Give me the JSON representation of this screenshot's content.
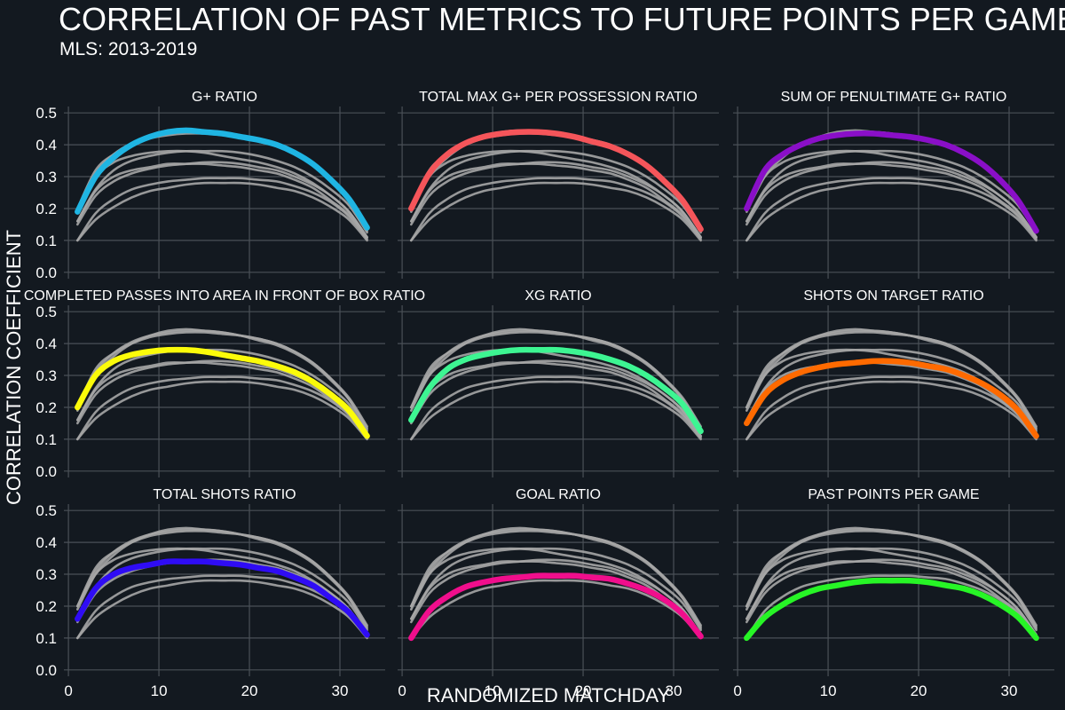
{
  "title": "CORRELATION OF PAST METRICS TO FUTURE POINTS PER GAME",
  "subtitle": "MLS: 2013-2019",
  "chart_data": {
    "type": "line",
    "layout": "facet-grid-3x3",
    "xlabel": "RANDOMIZED MATCHDAY",
    "ylabel": "CORRELATION COEFFICIENT",
    "xlim": [
      -0.5,
      35
    ],
    "ylim": [
      -0.02,
      0.52
    ],
    "xticks": [
      0,
      10,
      20,
      30
    ],
    "xtick_labels": [
      "0",
      "10",
      "20",
      "30"
    ],
    "yticks": [
      0,
      0.1,
      0.2,
      0.3,
      0.4,
      0.5
    ],
    "ytick_labels": [
      "0.0",
      "0.1",
      "0.2",
      "0.3",
      "0.4",
      "0.5"
    ],
    "grid": true,
    "legend": "none",
    "x": [
      1,
      3,
      5,
      7,
      9,
      11,
      13,
      15,
      17,
      19,
      21,
      23,
      25,
      27,
      29,
      31,
      33
    ],
    "background_series_color": "#a6a6a6",
    "series": [
      {
        "name": "G+ RATIO",
        "color": "#1fb5e3",
        "values": [
          0.19,
          0.3,
          0.36,
          0.4,
          0.425,
          0.44,
          0.445,
          0.44,
          0.435,
          0.425,
          0.415,
          0.4,
          0.375,
          0.34,
          0.29,
          0.23,
          0.14
        ]
      },
      {
        "name": "TOTAL MAX G+ PER POSSESSION RATIO",
        "color": "#f5555a",
        "values": [
          0.2,
          0.31,
          0.37,
          0.405,
          0.425,
          0.435,
          0.44,
          0.44,
          0.435,
          0.425,
          0.41,
          0.395,
          0.37,
          0.335,
          0.285,
          0.225,
          0.135
        ]
      },
      {
        "name": "SUM OF PENULTIMATE G+ RATIO",
        "color": "#8a0fc8",
        "values": [
          0.2,
          0.32,
          0.37,
          0.4,
          0.42,
          0.43,
          0.435,
          0.435,
          0.43,
          0.425,
          0.415,
          0.4,
          0.375,
          0.34,
          0.29,
          0.225,
          0.13
        ]
      },
      {
        "name": "COMPLETED PASSES INTO AREA IN FRONT OF BOX RATIO",
        "color": "#fbfb0a",
        "values": [
          0.2,
          0.3,
          0.345,
          0.365,
          0.375,
          0.38,
          0.38,
          0.375,
          0.365,
          0.355,
          0.345,
          0.33,
          0.31,
          0.28,
          0.24,
          0.19,
          0.11
        ]
      },
      {
        "name": "XG RATIO",
        "color": "#3df592",
        "values": [
          0.16,
          0.26,
          0.32,
          0.35,
          0.365,
          0.375,
          0.38,
          0.38,
          0.38,
          0.375,
          0.365,
          0.35,
          0.33,
          0.3,
          0.26,
          0.21,
          0.125
        ]
      },
      {
        "name": "SHOTS ON TARGET RATIO",
        "color": "#ff6a00",
        "values": [
          0.15,
          0.24,
          0.285,
          0.31,
          0.325,
          0.335,
          0.34,
          0.345,
          0.345,
          0.34,
          0.33,
          0.32,
          0.3,
          0.275,
          0.24,
          0.19,
          0.11
        ]
      },
      {
        "name": "TOTAL SHOTS RATIO",
        "color": "#2f0cf5",
        "values": [
          0.16,
          0.255,
          0.3,
          0.32,
          0.33,
          0.34,
          0.34,
          0.34,
          0.335,
          0.33,
          0.32,
          0.31,
          0.29,
          0.265,
          0.225,
          0.18,
          0.11
        ]
      },
      {
        "name": "GOAL RATIO",
        "color": "#f00e8c",
        "values": [
          0.1,
          0.185,
          0.23,
          0.26,
          0.275,
          0.285,
          0.29,
          0.295,
          0.295,
          0.295,
          0.29,
          0.285,
          0.27,
          0.25,
          0.22,
          0.175,
          0.105
        ]
      },
      {
        "name": "PAST POINTS PER GAME",
        "color": "#27f526",
        "values": [
          0.1,
          0.165,
          0.205,
          0.235,
          0.255,
          0.265,
          0.275,
          0.28,
          0.28,
          0.28,
          0.275,
          0.265,
          0.255,
          0.235,
          0.205,
          0.165,
          0.1
        ]
      }
    ]
  }
}
